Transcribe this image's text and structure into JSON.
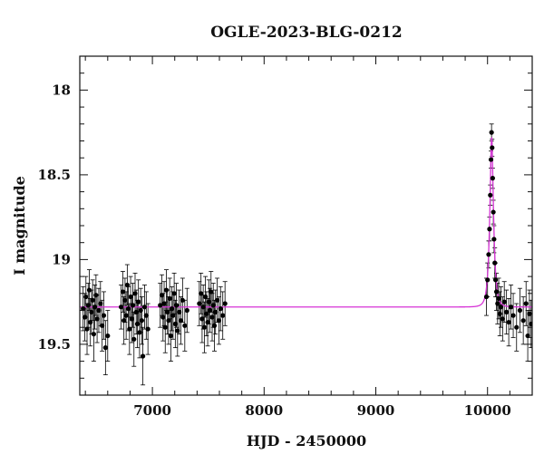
{
  "chart_data": {
    "type": "scatter",
    "title": "OGLE-2023-BLG-0212",
    "xlabel": "HJD - 2450000",
    "ylabel": "I magnitude",
    "xlim": [
      6350,
      10400
    ],
    "ylim": [
      19.8,
      17.8
    ],
    "y_inverted": true,
    "grid": false,
    "x_ticks": [
      7000,
      8000,
      9000,
      10000
    ],
    "y_ticks": [
      18,
      18.5,
      19,
      19.5
    ],
    "x_tick_labels": [
      "7000",
      "8000",
      "9000",
      "10000"
    ],
    "y_tick_labels": [
      "18",
      "18.5",
      "19",
      "19.5"
    ],
    "colors": {
      "data": "#000000",
      "model": "#d633d6"
    },
    "series": [
      {
        "type": "errorbar",
        "points": [
          {
            "x": 6380,
            "y": 19.29,
            "err": 0.13
          },
          {
            "x": 6395,
            "y": 19.34,
            "err": 0.14
          },
          {
            "x": 6405,
            "y": 19.22,
            "err": 0.12
          },
          {
            "x": 6415,
            "y": 19.41,
            "err": 0.15
          },
          {
            "x": 6425,
            "y": 19.27,
            "err": 0.13
          },
          {
            "x": 6435,
            "y": 19.18,
            "err": 0.12
          },
          {
            "x": 6445,
            "y": 19.37,
            "err": 0.14
          },
          {
            "x": 6455,
            "y": 19.31,
            "err": 0.13
          },
          {
            "x": 6465,
            "y": 19.24,
            "err": 0.12
          },
          {
            "x": 6475,
            "y": 19.44,
            "err": 0.16
          },
          {
            "x": 6485,
            "y": 19.28,
            "err": 0.13
          },
          {
            "x": 6495,
            "y": 19.21,
            "err": 0.12
          },
          {
            "x": 6505,
            "y": 19.35,
            "err": 0.14
          },
          {
            "x": 6520,
            "y": 19.3,
            "err": 0.13
          },
          {
            "x": 6535,
            "y": 19.26,
            "err": 0.13
          },
          {
            "x": 6550,
            "y": 19.39,
            "err": 0.15
          },
          {
            "x": 6565,
            "y": 19.33,
            "err": 0.14
          },
          {
            "x": 6580,
            "y": 19.52,
            "err": 0.16
          },
          {
            "x": 6600,
            "y": 19.45,
            "err": 0.15
          },
          {
            "x": 6720,
            "y": 19.28,
            "err": 0.13
          },
          {
            "x": 6735,
            "y": 19.19,
            "err": 0.12
          },
          {
            "x": 6745,
            "y": 19.36,
            "err": 0.14
          },
          {
            "x": 6755,
            "y": 19.24,
            "err": 0.13
          },
          {
            "x": 6765,
            "y": 19.33,
            "err": 0.14
          },
          {
            "x": 6775,
            "y": 19.15,
            "err": 0.12
          },
          {
            "x": 6785,
            "y": 19.29,
            "err": 0.13
          },
          {
            "x": 6795,
            "y": 19.41,
            "err": 0.15
          },
          {
            "x": 6805,
            "y": 19.22,
            "err": 0.12
          },
          {
            "x": 6815,
            "y": 19.35,
            "err": 0.14
          },
          {
            "x": 6825,
            "y": 19.27,
            "err": 0.13
          },
          {
            "x": 6835,
            "y": 19.47,
            "err": 0.16
          },
          {
            "x": 6845,
            "y": 19.2,
            "err": 0.12
          },
          {
            "x": 6855,
            "y": 19.31,
            "err": 0.13
          },
          {
            "x": 6865,
            "y": 19.38,
            "err": 0.14
          },
          {
            "x": 6875,
            "y": 19.25,
            "err": 0.13
          },
          {
            "x": 6885,
            "y": 19.43,
            "err": 0.15
          },
          {
            "x": 6895,
            "y": 19.3,
            "err": 0.13
          },
          {
            "x": 6905,
            "y": 19.36,
            "err": 0.14
          },
          {
            "x": 6915,
            "y": 19.57,
            "err": 0.17
          },
          {
            "x": 6930,
            "y": 19.28,
            "err": 0.13
          },
          {
            "x": 6945,
            "y": 19.33,
            "err": 0.14
          },
          {
            "x": 6960,
            "y": 19.41,
            "err": 0.15
          },
          {
            "x": 7070,
            "y": 19.27,
            "err": 0.13
          },
          {
            "x": 7085,
            "y": 19.21,
            "err": 0.12
          },
          {
            "x": 7095,
            "y": 19.34,
            "err": 0.14
          },
          {
            "x": 7105,
            "y": 19.26,
            "err": 0.13
          },
          {
            "x": 7115,
            "y": 19.4,
            "err": 0.15
          },
          {
            "x": 7125,
            "y": 19.18,
            "err": 0.12
          },
          {
            "x": 7135,
            "y": 19.31,
            "err": 0.13
          },
          {
            "x": 7145,
            "y": 19.36,
            "err": 0.14
          },
          {
            "x": 7155,
            "y": 19.23,
            "err": 0.12
          },
          {
            "x": 7165,
            "y": 19.45,
            "err": 0.15
          },
          {
            "x": 7175,
            "y": 19.29,
            "err": 0.13
          },
          {
            "x": 7185,
            "y": 19.33,
            "err": 0.14
          },
          {
            "x": 7195,
            "y": 19.2,
            "err": 0.12
          },
          {
            "x": 7205,
            "y": 19.38,
            "err": 0.14
          },
          {
            "x": 7215,
            "y": 19.27,
            "err": 0.13
          },
          {
            "x": 7225,
            "y": 19.42,
            "err": 0.15
          },
          {
            "x": 7240,
            "y": 19.31,
            "err": 0.13
          },
          {
            "x": 7255,
            "y": 19.36,
            "err": 0.14
          },
          {
            "x": 7270,
            "y": 19.24,
            "err": 0.13
          },
          {
            "x": 7290,
            "y": 19.39,
            "err": 0.15
          },
          {
            "x": 7310,
            "y": 19.3,
            "err": 0.13
          },
          {
            "x": 7420,
            "y": 19.26,
            "err": 0.13
          },
          {
            "x": 7435,
            "y": 19.2,
            "err": 0.12
          },
          {
            "x": 7445,
            "y": 19.35,
            "err": 0.14
          },
          {
            "x": 7455,
            "y": 19.28,
            "err": 0.13
          },
          {
            "x": 7465,
            "y": 19.4,
            "err": 0.15
          },
          {
            "x": 7475,
            "y": 19.22,
            "err": 0.12
          },
          {
            "x": 7485,
            "y": 19.32,
            "err": 0.13
          },
          {
            "x": 7495,
            "y": 19.37,
            "err": 0.14
          },
          {
            "x": 7505,
            "y": 19.25,
            "err": 0.13
          },
          {
            "x": 7515,
            "y": 19.3,
            "err": 0.13
          },
          {
            "x": 7525,
            "y": 19.19,
            "err": 0.12
          },
          {
            "x": 7535,
            "y": 19.34,
            "err": 0.14
          },
          {
            "x": 7545,
            "y": 19.27,
            "err": 0.13
          },
          {
            "x": 7555,
            "y": 19.39,
            "err": 0.15
          },
          {
            "x": 7565,
            "y": 19.31,
            "err": 0.13
          },
          {
            "x": 7580,
            "y": 19.24,
            "err": 0.13
          },
          {
            "x": 7595,
            "y": 19.36,
            "err": 0.14
          },
          {
            "x": 7610,
            "y": 19.29,
            "err": 0.13
          },
          {
            "x": 7630,
            "y": 19.33,
            "err": 0.14
          },
          {
            "x": 7650,
            "y": 19.26,
            "err": 0.13
          },
          {
            "x": 9990,
            "y": 19.22,
            "err": 0.11
          },
          {
            "x": 10000,
            "y": 19.12,
            "err": 0.1
          },
          {
            "x": 10010,
            "y": 18.97,
            "err": 0.08
          },
          {
            "x": 10018,
            "y": 18.82,
            "err": 0.07
          },
          {
            "x": 10025,
            "y": 18.62,
            "err": 0.06
          },
          {
            "x": 10031,
            "y": 18.41,
            "err": 0.05
          },
          {
            "x": 10036,
            "y": 18.25,
            "err": 0.05
          },
          {
            "x": 10041,
            "y": 18.34,
            "err": 0.05
          },
          {
            "x": 10046,
            "y": 18.52,
            "err": 0.06
          },
          {
            "x": 10052,
            "y": 18.72,
            "err": 0.07
          },
          {
            "x": 10058,
            "y": 18.88,
            "err": 0.08
          },
          {
            "x": 10065,
            "y": 19.02,
            "err": 0.09
          },
          {
            "x": 10072,
            "y": 19.12,
            "err": 0.1
          },
          {
            "x": 10080,
            "y": 19.19,
            "err": 0.11
          },
          {
            "x": 10090,
            "y": 19.26,
            "err": 0.12
          },
          {
            "x": 10100,
            "y": 19.23,
            "err": 0.12
          },
          {
            "x": 10110,
            "y": 19.32,
            "err": 0.13
          },
          {
            "x": 10120,
            "y": 19.28,
            "err": 0.12
          },
          {
            "x": 10135,
            "y": 19.35,
            "err": 0.13
          },
          {
            "x": 10150,
            "y": 19.25,
            "err": 0.12
          },
          {
            "x": 10170,
            "y": 19.31,
            "err": 0.13
          },
          {
            "x": 10190,
            "y": 19.37,
            "err": 0.14
          },
          {
            "x": 10210,
            "y": 19.28,
            "err": 0.13
          },
          {
            "x": 10230,
            "y": 19.33,
            "err": 0.13
          },
          {
            "x": 10260,
            "y": 19.4,
            "err": 0.14
          },
          {
            "x": 10290,
            "y": 19.3,
            "err": 0.13
          },
          {
            "x": 10320,
            "y": 19.36,
            "err": 0.14
          },
          {
            "x": 10345,
            "y": 19.26,
            "err": 0.13
          },
          {
            "x": 10360,
            "y": 19.45,
            "err": 0.15
          },
          {
            "x": 10375,
            "y": 19.32,
            "err": 0.14
          },
          {
            "x": 10390,
            "y": 19.38,
            "err": 0.14
          }
        ]
      },
      {
        "type": "line",
        "model": "point-lens",
        "baseline": 19.28,
        "peak_x": 10037,
        "peak_y": 18.28,
        "width_days": 30
      }
    ]
  }
}
